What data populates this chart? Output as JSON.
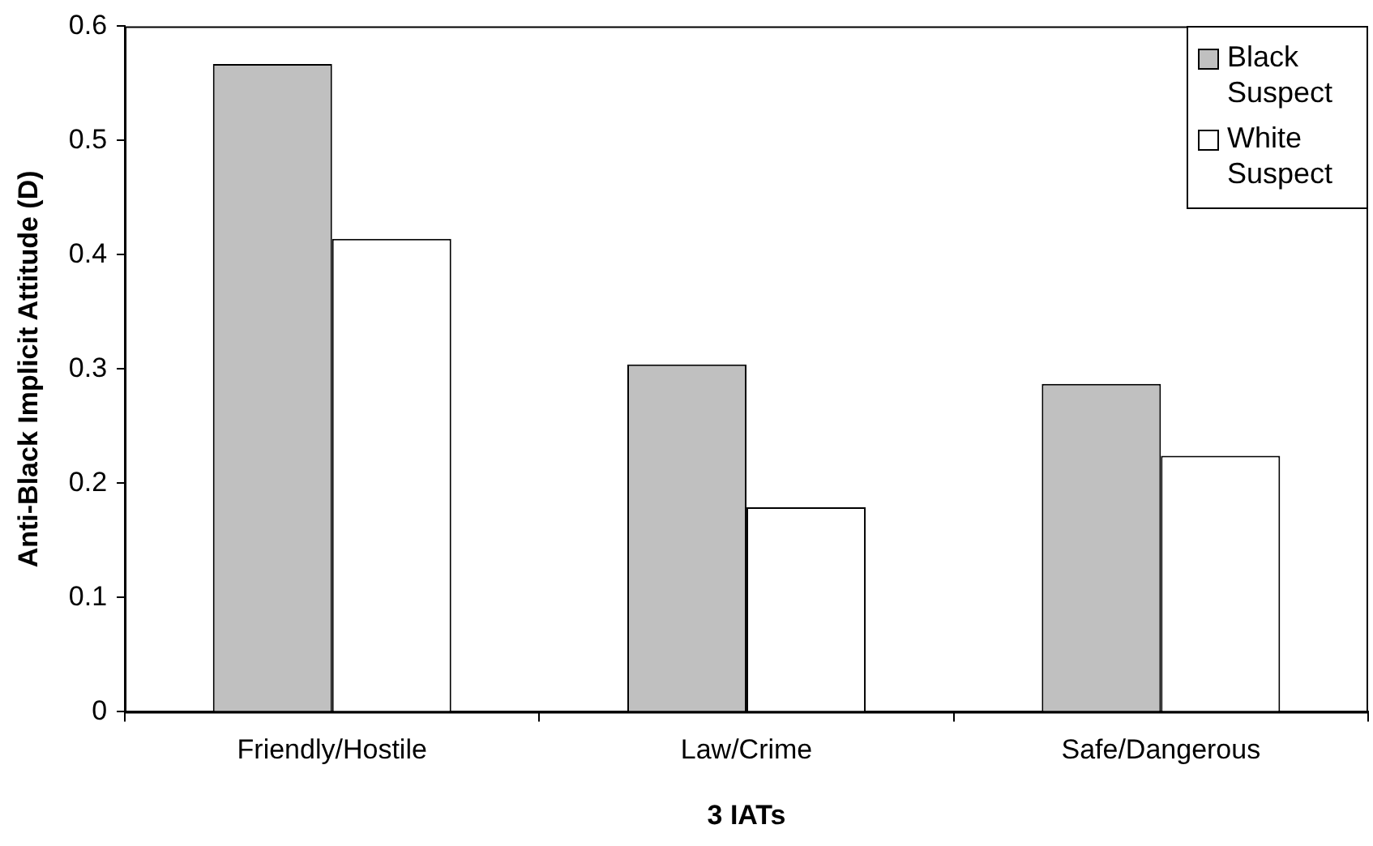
{
  "chart_data": {
    "type": "bar",
    "xlabel": "3 IATs",
    "ylabel": "Anti-Black Implicit Attitude (D)",
    "categories": [
      "Friendly/Hostile",
      "Law/Crime",
      "Safe/Dangerous"
    ],
    "series": [
      {
        "name": "Black Suspect",
        "color": "#c0c0c0",
        "values": [
          0.567,
          0.304,
          0.287
        ]
      },
      {
        "name": "White Suspect",
        "color": "#ffffff",
        "values": [
          0.414,
          0.179,
          0.224
        ]
      }
    ],
    "ylim": [
      0,
      0.6
    ],
    "yticks": [
      0,
      0.1,
      0.2,
      0.3,
      0.4,
      0.5,
      0.6
    ],
    "grid": false,
    "legend": "top right"
  }
}
